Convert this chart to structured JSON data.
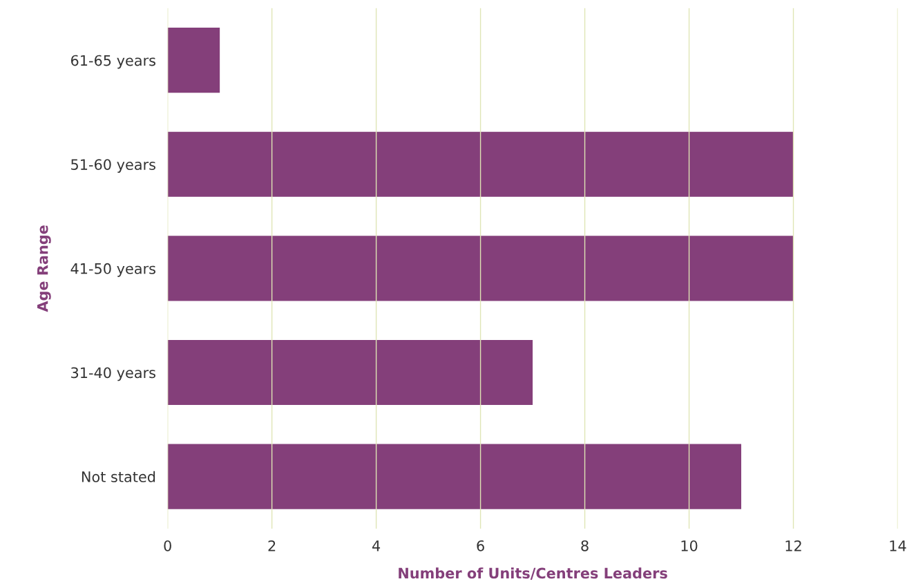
{
  "chart_data": {
    "type": "bar",
    "orientation": "horizontal",
    "xlabel": "Number of Units/Centres Leaders",
    "ylabel": "Age Range",
    "categories": [
      "61-65 years",
      "51-60 years",
      "41-50 years",
      "31-40 years",
      "Not stated"
    ],
    "values": [
      1,
      12,
      12,
      7,
      11
    ],
    "color": "#843f7a",
    "xlim": [
      0,
      14
    ],
    "xticks": [
      0,
      2,
      4,
      6,
      8,
      10,
      12,
      14
    ],
    "grid": "x",
    "legend": false
  }
}
